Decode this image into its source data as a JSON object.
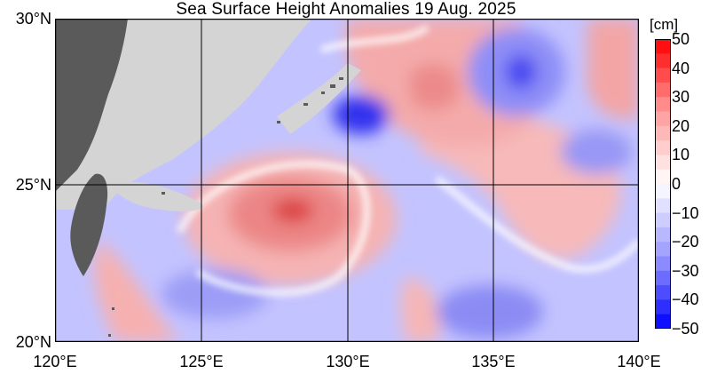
{
  "title": "Sea Surface Height Anomalies  19 Aug. 2025",
  "map": {
    "lat_labels": [
      "30°N",
      "25°N",
      "20°N"
    ],
    "lon_labels": [
      "120°E",
      "125°E",
      "130°E",
      "135°E",
      "140°E"
    ],
    "extent": {
      "lon_min": 120,
      "lon_max": 140,
      "lat_min": 20,
      "lat_max": 30
    },
    "grid_lines": true
  },
  "colorbar": {
    "unit": "[cm]",
    "tick_labels": [
      "50",
      "40",
      "30",
      "20",
      "10",
      "0",
      "−10",
      "−20",
      "−30",
      "−40",
      "−50"
    ],
    "range": [
      -50,
      50
    ],
    "colors": {
      "max": "#ff0000",
      "positive_mid": "#ff9a9a",
      "zero": "#ffffff",
      "negative_mid": "#9a9aff",
      "min": "#0000ff"
    }
  },
  "land": {
    "ocean_mask_color": "#d4d4d4",
    "land_color": "#5a5a5a"
  }
}
